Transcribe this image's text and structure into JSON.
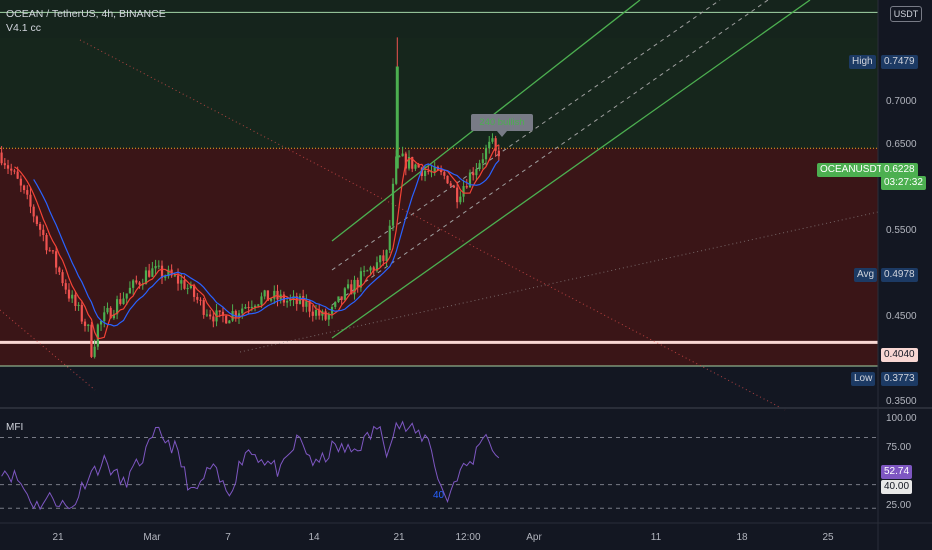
{
  "header": {
    "symbol_line": "OCEAN / TetherUS, 4h, BINANCE",
    "script_line": "V4.1 cc",
    "currency_button": "USDT"
  },
  "price_axis": {
    "ticks": [
      "0.7000",
      "0.6500",
      "0.5500",
      "0.4500",
      "0.3500"
    ]
  },
  "mfi_axis": {
    "ticks": [
      "100.00",
      "75.00",
      "25.00"
    ]
  },
  "time_axis": {
    "ticks": [
      "21",
      "Mar",
      "7",
      "14",
      "21",
      "12:00",
      "Apr",
      "11",
      "18",
      "25"
    ]
  },
  "tags": {
    "high_label": "High",
    "high_value": "0.7479",
    "symbol_label": "OCEANUSDT",
    "last_price": "0.6228",
    "countdown": "03:27:32",
    "avg_label": "Avg",
    "avg_value": "0.4978",
    "support_value": "0.4040",
    "low_label": "Low",
    "low_value": "0.3773",
    "mfi_value": "52.74",
    "mfi_level": "40.00"
  },
  "annotations": {
    "callout": "240 bullish",
    "mfi_marker": "40",
    "mfi_title": "MFI"
  },
  "colors": {
    "background": "#131722",
    "up": "#4caf50",
    "down": "#ef5350",
    "ma_fast": "#f44336",
    "ma_slow": "#2962ff",
    "mfi_line": "#7e57c2",
    "channel": "#4caf50",
    "zone_red": "#3a1517",
    "zone_green": "#16261c"
  },
  "chart_data": {
    "type": "candlestick",
    "panes": [
      "price",
      "mfi"
    ],
    "price_levels": {
      "high": 0.7479,
      "last": 0.6228,
      "avg": 0.4978,
      "support": 0.404,
      "low": 0.3773
    },
    "price_range": [
      0.33,
      0.79
    ],
    "mfi_range": [
      10,
      105
    ],
    "mfi_levels": [
      80,
      40,
      20
    ],
    "price_path": [
      [
        0,
        0.618
      ],
      [
        0.02,
        0.585
      ],
      [
        0.04,
        0.545
      ],
      [
        0.06,
        0.5
      ],
      [
        0.08,
        0.455
      ],
      [
        0.1,
        0.42
      ],
      [
        0.105,
        0.39
      ],
      [
        0.11,
        0.42
      ],
      [
        0.13,
        0.445
      ],
      [
        0.15,
        0.465
      ],
      [
        0.17,
        0.485
      ],
      [
        0.19,
        0.48
      ],
      [
        0.21,
        0.47
      ],
      [
        0.23,
        0.445
      ],
      [
        0.25,
        0.43
      ],
      [
        0.27,
        0.44
      ],
      [
        0.29,
        0.452
      ],
      [
        0.31,
        0.455
      ],
      [
        0.33,
        0.45
      ],
      [
        0.35,
        0.446
      ],
      [
        0.37,
        0.43
      ],
      [
        0.38,
        0.44
      ],
      [
        0.39,
        0.455
      ],
      [
        0.4,
        0.465
      ],
      [
        0.42,
        0.485
      ],
      [
        0.44,
        0.5
      ],
      [
        0.445,
        0.545
      ],
      [
        0.45,
        0.605
      ],
      [
        0.455,
        0.61
      ],
      [
        0.47,
        0.605
      ],
      [
        0.49,
        0.595
      ],
      [
        0.51,
        0.59
      ],
      [
        0.52,
        0.57
      ],
      [
        0.53,
        0.585
      ],
      [
        0.54,
        0.6
      ],
      [
        0.55,
        0.615
      ],
      [
        0.56,
        0.628
      ],
      [
        0.565,
        0.615
      ],
      [
        0.57,
        0.6228
      ]
    ],
    "mfi_path": [
      [
        0,
        55
      ],
      [
        0.02,
        45
      ],
      [
        0.04,
        22
      ],
      [
        0.06,
        30
      ],
      [
        0.08,
        18
      ],
      [
        0.1,
        48
      ],
      [
        0.12,
        60
      ],
      [
        0.14,
        40
      ],
      [
        0.16,
        60
      ],
      [
        0.18,
        85
      ],
      [
        0.2,
        70
      ],
      [
        0.22,
        30
      ],
      [
        0.24,
        55
      ],
      [
        0.26,
        32
      ],
      [
        0.28,
        70
      ],
      [
        0.3,
        62
      ],
      [
        0.32,
        50
      ],
      [
        0.34,
        80
      ],
      [
        0.36,
        55
      ],
      [
        0.38,
        72
      ],
      [
        0.4,
        68
      ],
      [
        0.42,
        80
      ],
      [
        0.43,
        90
      ],
      [
        0.44,
        70
      ],
      [
        0.45,
        92
      ],
      [
        0.47,
        85
      ],
      [
        0.49,
        78
      ],
      [
        0.5,
        40
      ],
      [
        0.51,
        28
      ],
      [
        0.52,
        48
      ],
      [
        0.53,
        55
      ],
      [
        0.54,
        62
      ],
      [
        0.55,
        85
      ],
      [
        0.56,
        75
      ],
      [
        0.57,
        52.74
      ]
    ],
    "price_pane_width_frac": 0.94
  }
}
